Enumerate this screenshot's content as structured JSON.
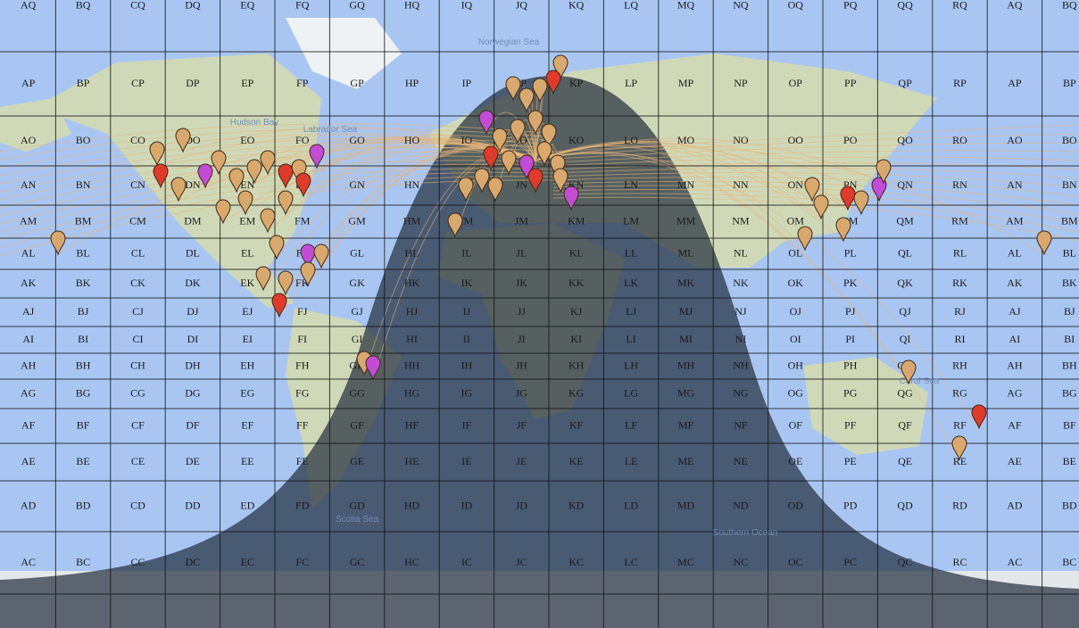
{
  "grid": {
    "rows": [
      [
        "AQ",
        "BQ",
        "CQ",
        "DQ",
        "EQ",
        "FQ",
        "GQ",
        "HQ",
        "IQ",
        "JQ",
        "KQ",
        "LQ",
        "MQ",
        "NQ",
        "OQ",
        "PQ",
        "QQ",
        "RQ",
        "AQ",
        "BQ"
      ],
      [
        "AP",
        "BP",
        "CP",
        "DP",
        "EP",
        "FP",
        "GP",
        "HP",
        "IP",
        "JP",
        "KP",
        "LP",
        "MP",
        "NP",
        "OP",
        "PP",
        "QP",
        "RP",
        "AP",
        "BP"
      ],
      [
        "AO",
        "BO",
        "CO",
        "DO",
        "EO",
        "FO",
        "GO",
        "HO",
        "IO",
        "JO",
        "KO",
        "LO",
        "MO",
        "NO",
        "OO",
        "PO",
        "QO",
        "RO",
        "AO",
        "BO"
      ],
      [
        "AN",
        "BN",
        "CN",
        "DN",
        "EN",
        "FN",
        "GN",
        "HN",
        "IN",
        "JN",
        "KN",
        "LN",
        "MN",
        "NN",
        "ON",
        "PN",
        "QN",
        "RN",
        "AN",
        "BN"
      ],
      [
        "AM",
        "BM",
        "CM",
        "DM",
        "EM",
        "FM",
        "GM",
        "HM",
        "IM",
        "JM",
        "KM",
        "LM",
        "MM",
        "NM",
        "OM",
        "PM",
        "QM",
        "RM",
        "AM",
        "BM"
      ],
      [
        "AL",
        "BL",
        "CL",
        "DL",
        "EL",
        "FL",
        "GL",
        "HL",
        "IL",
        "JL",
        "KL",
        "LL",
        "ML",
        "NL",
        "OL",
        "PL",
        "QL",
        "RL",
        "AL",
        "BL"
      ],
      [
        "AK",
        "BK",
        "CK",
        "DK",
        "EK",
        "FK",
        "GK",
        "HK",
        "IK",
        "JK",
        "KK",
        "LK",
        "MK",
        "NK",
        "OK",
        "PK",
        "QK",
        "RK",
        "AK",
        "BK"
      ],
      [
        "AJ",
        "BJ",
        "CJ",
        "DJ",
        "EJ",
        "FJ",
        "GJ",
        "HJ",
        "IJ",
        "JJ",
        "KJ",
        "LJ",
        "MJ",
        "NJ",
        "OJ",
        "PJ",
        "QJ",
        "RJ",
        "AJ",
        "BJ"
      ],
      [
        "AI",
        "BI",
        "CI",
        "DI",
        "EI",
        "FI",
        "GI",
        "HI",
        "II",
        "JI",
        "KI",
        "LI",
        "MI",
        "NI",
        "OI",
        "PI",
        "QI",
        "RI",
        "AI",
        "BI"
      ],
      [
        "AH",
        "BH",
        "CH",
        "DH",
        "EH",
        "FH",
        "GH",
        "HH",
        "IH",
        "JH",
        "KH",
        "LH",
        "MH",
        "NH",
        "OH",
        "PH",
        "QH",
        "RH",
        "AH",
        "BH"
      ],
      [
        "AG",
        "BG",
        "CG",
        "DG",
        "EG",
        "FG",
        "GG",
        "HG",
        "IG",
        "JG",
        "KG",
        "LG",
        "MG",
        "NG",
        "OG",
        "PG",
        "QG",
        "RG",
        "AG",
        "BG"
      ],
      [
        "AF",
        "BF",
        "CF",
        "DF",
        "EF",
        "FF",
        "GF",
        "HF",
        "IF",
        "JF",
        "KF",
        "LF",
        "MF",
        "NF",
        "OF",
        "PF",
        "QF",
        "RF",
        "AF",
        "BF"
      ],
      [
        "AE",
        "BE",
        "CE",
        "DE",
        "EE",
        "FE",
        "GE",
        "HE",
        "IE",
        "JE",
        "KE",
        "LE",
        "ME",
        "NE",
        "OE",
        "PE",
        "QE",
        "RE",
        "AE",
        "BE"
      ],
      [
        "AD",
        "BD",
        "CD",
        "DD",
        "ED",
        "FD",
        "GD",
        "HD",
        "ID",
        "JD",
        "KD",
        "LD",
        "MD",
        "ND",
        "OD",
        "PD",
        "QD",
        "RD",
        "AD",
        "BD"
      ],
      [
        "AC",
        "BC",
        "CC",
        "DC",
        "EC",
        "FC",
        "GC",
        "HC",
        "IC",
        "JC",
        "KC",
        "LC",
        "MC",
        "NC",
        "OC",
        "PC",
        "QC",
        "RC",
        "AC",
        "BC"
      ]
    ]
  },
  "map_labels": [
    "Norwegian Sea",
    "Hudson Bay",
    "Labrador Sea",
    "Scotia Sea",
    "Southern Ocean",
    "Coral Sea"
  ]
}
